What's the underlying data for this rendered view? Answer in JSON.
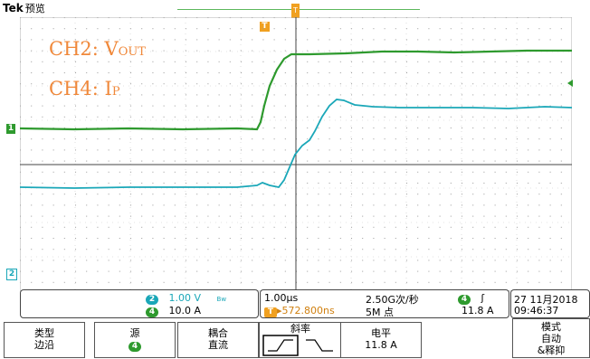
{
  "header": {
    "brand": "Tek",
    "mode": "预览",
    "trig_marker_top": "T",
    "trig_marker": "T"
  },
  "overlay": {
    "ch2_label": "CH2:",
    "ch2_sym": "V",
    "ch2_sub": "OUT",
    "ch4_label": "CH4:",
    "ch4_sym": "I",
    "ch4_sub": "P"
  },
  "markers": {
    "ch1_marker": "1",
    "ch2_marker": "2"
  },
  "readout": {
    "ch2_num": "2",
    "ch2_scale": "1.00 V",
    "ch2_flag": "Bw",
    "ch4_num": "4",
    "ch4_scale": "10.0 A",
    "timebase": "1.00µs",
    "sample_rate": "2.50G次/秒",
    "trig_offset": "▸572.800ns",
    "trig_offset_badge": "T",
    "record_length": "5M 点",
    "trig_src": "4",
    "trig_slope": "ʃ",
    "trig_level": "11.8 A",
    "date": "27 11月2018",
    "time": "09:46:37"
  },
  "softkeys": {
    "type_label": "类型",
    "type_value": "边沿",
    "source_label": "源",
    "source_value": "4",
    "coupling_label": "耦合",
    "coupling_value": "直流",
    "slope_label": "斜率",
    "level_label": "电平",
    "level_value": "11.8 A",
    "mode_label": "模式",
    "mode_value1": "自动",
    "mode_value2": "&释抑"
  },
  "colors": {
    "ch2": "#2e9a2e",
    "ch4": "#1aa7b8",
    "trigger": "#f0a020",
    "overlay_text": "#f0883a"
  }
}
